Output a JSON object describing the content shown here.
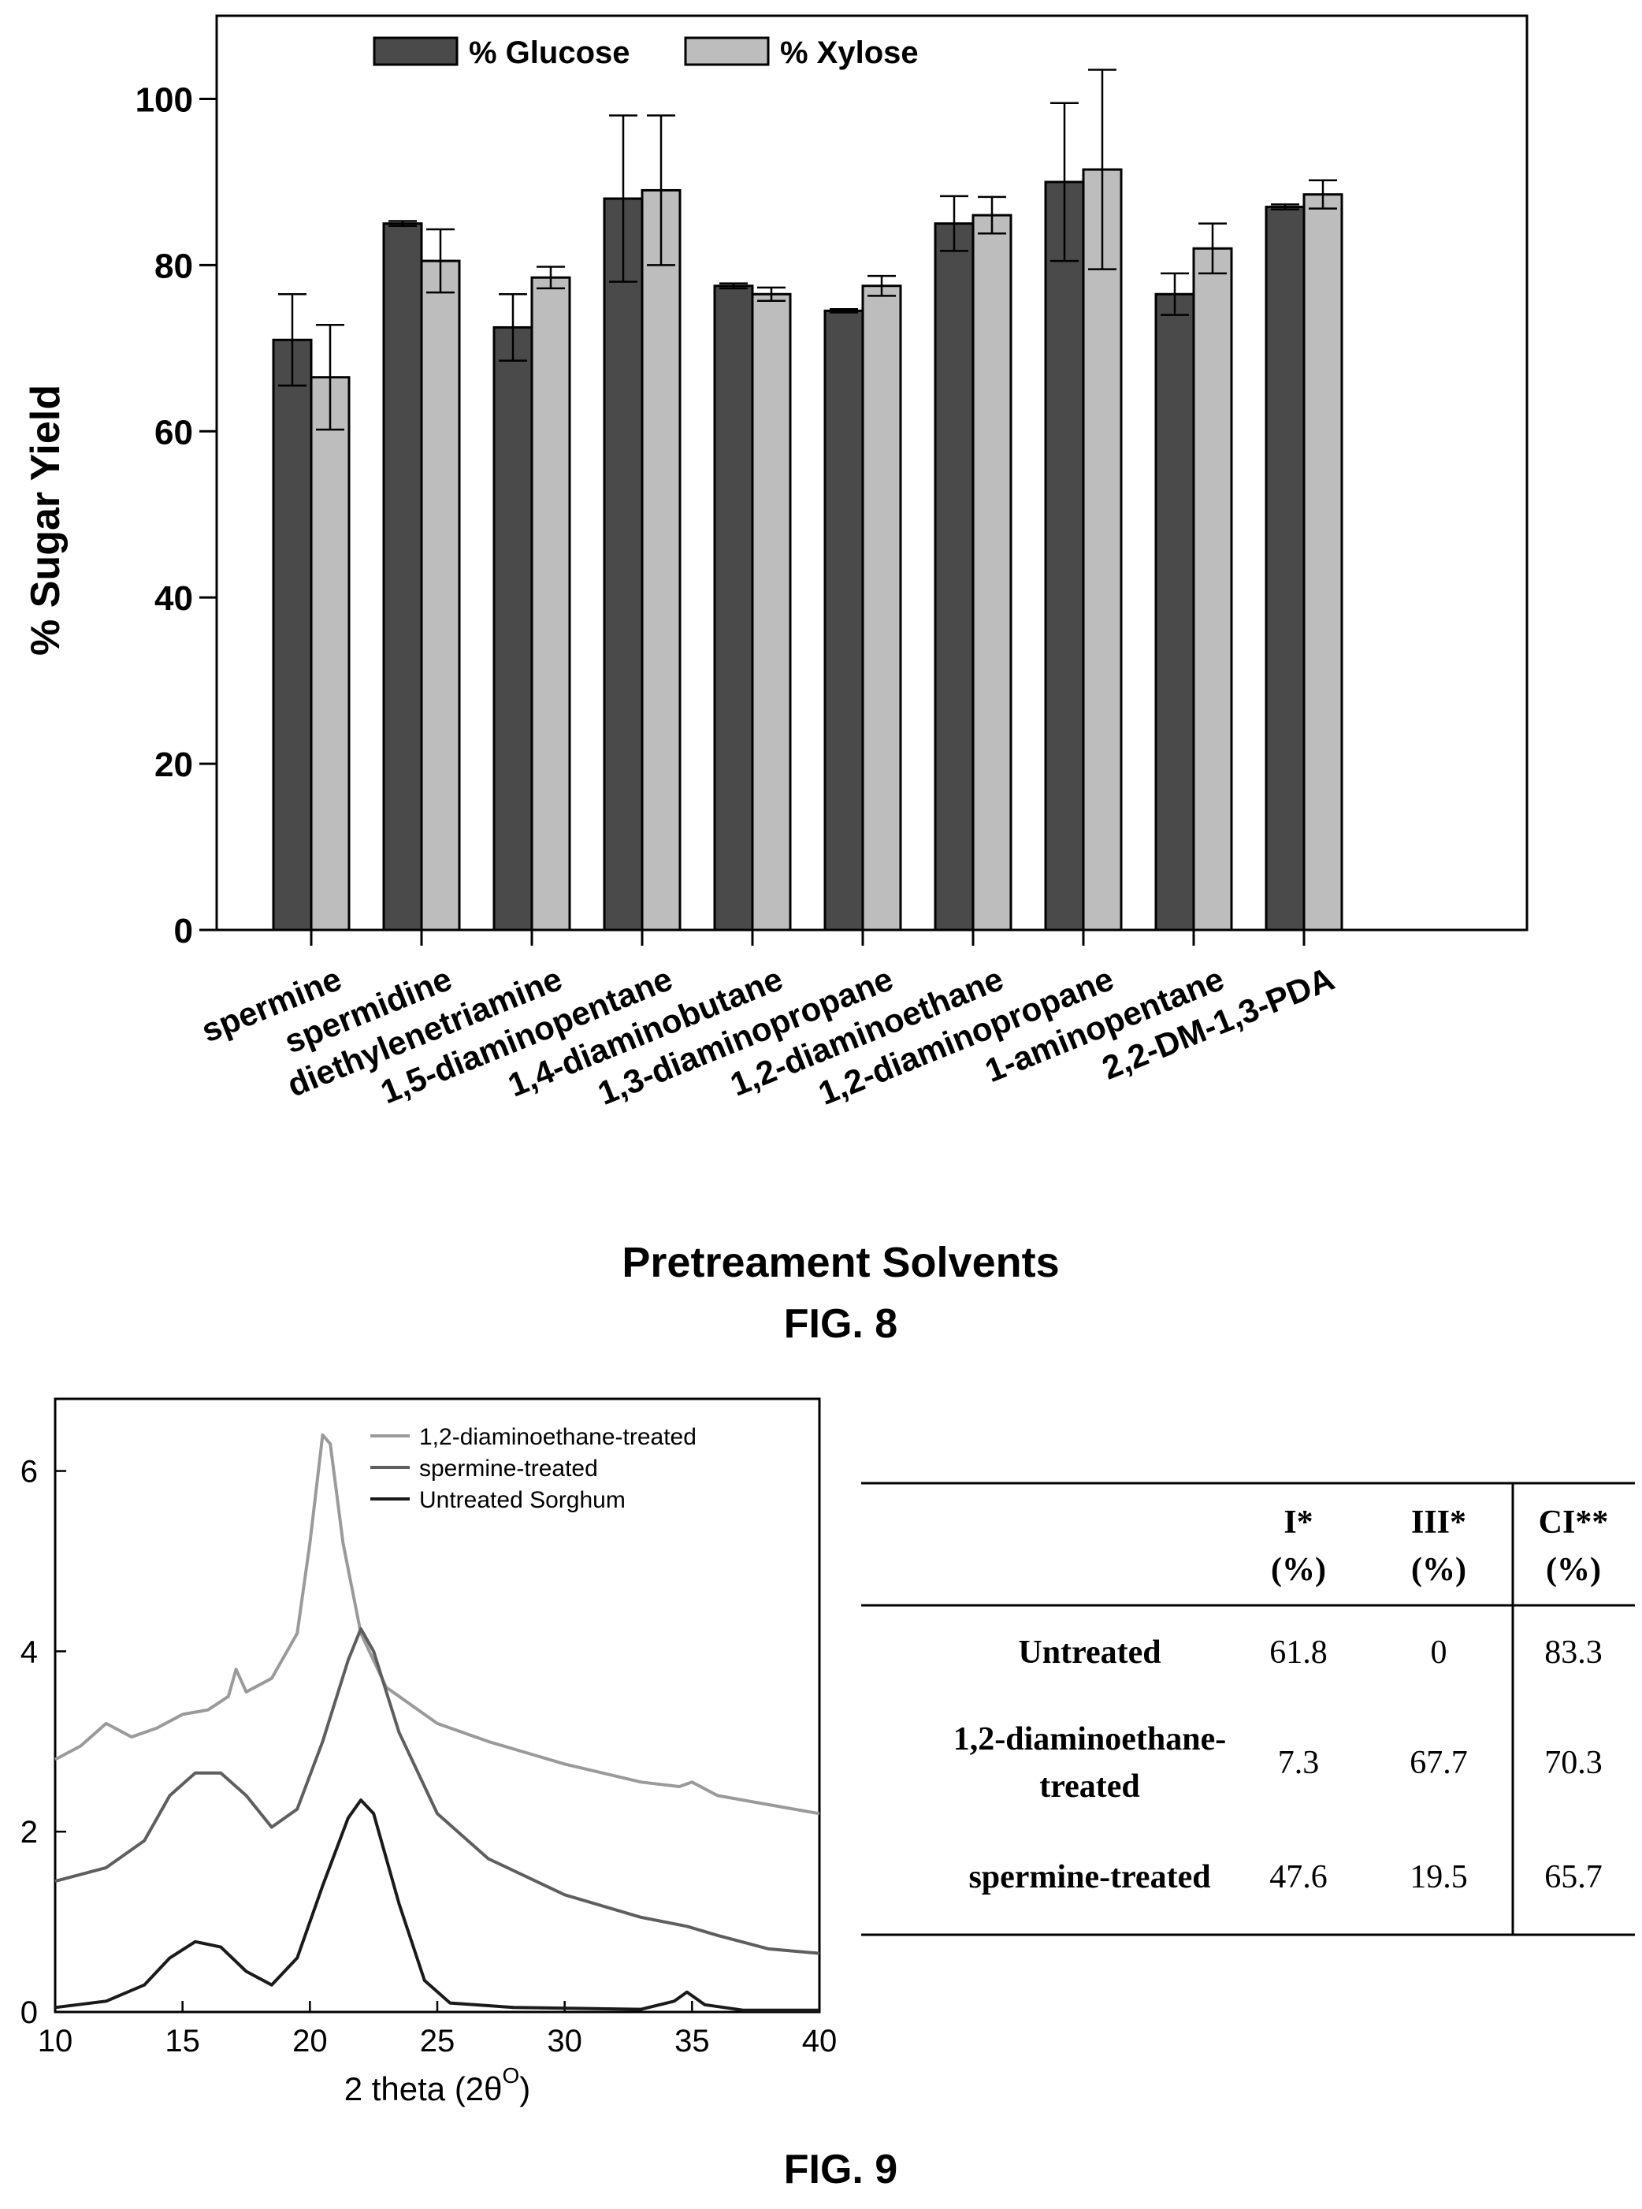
{
  "fig8": {
    "caption": "FIG. 8",
    "chart_data": {
      "type": "bar",
      "categories": [
        "spermine",
        "spermidine",
        "diethylenetriamine",
        "1,5-diaminopentane",
        "1,4-diaminobutane",
        "1,3-diaminopropane",
        "1,2-diaminoethane",
        "1,2-diaminopropane",
        "1-aminopentane",
        "2,2-DM-1,3-PDA"
      ],
      "series": [
        {
          "name": "% Glucose",
          "values": [
            71,
            85,
            72.5,
            88,
            77.5,
            74.5,
            85,
            90,
            76.5,
            87
          ],
          "errors": [
            5.5,
            0.3,
            4,
            10,
            0.3,
            0.2,
            3.3,
            9.5,
            2.5,
            0.3
          ],
          "color": "#4a4a4a"
        },
        {
          "name": "% Xylose",
          "values": [
            66.5,
            80.5,
            78.5,
            89,
            76.5,
            77.5,
            86,
            91.5,
            82,
            88.5
          ],
          "errors": [
            6.3,
            3.8,
            1.3,
            9,
            0.8,
            1.2,
            2.2,
            12,
            3,
            1.7
          ],
          "color": "#bdbdbd"
        }
      ],
      "xlabel": "Pretreament Solvents",
      "ylabel": "% Sugar Yield",
      "ylim": [
        0,
        110
      ],
      "yticks": [
        0,
        20,
        40,
        60,
        80,
        100
      ],
      "legend": "top-left",
      "grid": false
    }
  },
  "fig9": {
    "caption": "FIG. 9",
    "chart_data": {
      "type": "line",
      "xlabel_main": "2 theta (2θ",
      "xlabel_sup": "O",
      "xlabel_end": ")",
      "ylabel": "",
      "xlim": [
        10,
        40
      ],
      "ylim": [
        0,
        6.8
      ],
      "xticks": [
        10,
        15,
        20,
        25,
        30,
        35,
        40
      ],
      "yticks": [
        0,
        2,
        4,
        6
      ],
      "legend": "top-right",
      "series": [
        {
          "name": "1,2-diaminoethane-treated",
          "color": "#9a9a9a",
          "points": [
            [
              10,
              2.8
            ],
            [
              11,
              2.95
            ],
            [
              12,
              3.2
            ],
            [
              13,
              3.05
            ],
            [
              14,
              3.15
            ],
            [
              15,
              3.3
            ],
            [
              16,
              3.35
            ],
            [
              16.8,
              3.5
            ],
            [
              17.1,
              3.8
            ],
            [
              17.5,
              3.55
            ],
            [
              18.5,
              3.7
            ],
            [
              19.5,
              4.2
            ],
            [
              20,
              5.2
            ],
            [
              20.5,
              6.4
            ],
            [
              20.8,
              6.3
            ],
            [
              21.3,
              5.2
            ],
            [
              22,
              4.2
            ],
            [
              23,
              3.6
            ],
            [
              25,
              3.2
            ],
            [
              27,
              3.0
            ],
            [
              30,
              2.75
            ],
            [
              33,
              2.55
            ],
            [
              34.5,
              2.5
            ],
            [
              35,
              2.55
            ],
            [
              36,
              2.4
            ],
            [
              38,
              2.3
            ],
            [
              40,
              2.2
            ]
          ]
        },
        {
          "name": "spermine-treated",
          "color": "#5e5e5e",
          "points": [
            [
              10,
              1.45
            ],
            [
              12,
              1.6
            ],
            [
              13.5,
              1.9
            ],
            [
              14.5,
              2.4
            ],
            [
              15.5,
              2.65
            ],
            [
              16.5,
              2.65
            ],
            [
              17.5,
              2.4
            ],
            [
              18.5,
              2.05
            ],
            [
              19.5,
              2.25
            ],
            [
              20.5,
              3.0
            ],
            [
              21.5,
              3.9
            ],
            [
              22,
              4.25
            ],
            [
              22.5,
              4.0
            ],
            [
              23.5,
              3.1
            ],
            [
              25,
              2.2
            ],
            [
              27,
              1.7
            ],
            [
              30,
              1.3
            ],
            [
              33,
              1.05
            ],
            [
              34.8,
              0.95
            ],
            [
              36,
              0.85
            ],
            [
              38,
              0.7
            ],
            [
              40,
              0.65
            ]
          ]
        },
        {
          "name": "Untreated Sorghum",
          "color": "#1a1a1a",
          "points": [
            [
              10,
              0.05
            ],
            [
              12,
              0.12
            ],
            [
              13.5,
              0.3
            ],
            [
              14.5,
              0.6
            ],
            [
              15.5,
              0.78
            ],
            [
              16.5,
              0.72
            ],
            [
              17.5,
              0.45
            ],
            [
              18.5,
              0.3
            ],
            [
              19.5,
              0.6
            ],
            [
              20.5,
              1.4
            ],
            [
              21.5,
              2.15
            ],
            [
              22,
              2.35
            ],
            [
              22.5,
              2.2
            ],
            [
              23.5,
              1.2
            ],
            [
              24.5,
              0.35
            ],
            [
              25.5,
              0.1
            ],
            [
              28,
              0.05
            ],
            [
              33,
              0.03
            ],
            [
              34.3,
              0.12
            ],
            [
              34.8,
              0.22
            ],
            [
              35.5,
              0.08
            ],
            [
              37,
              0.02
            ],
            [
              40,
              0.02
            ]
          ]
        }
      ]
    }
  },
  "table": {
    "headers": [
      {
        "line1": "I*",
        "line2": "(%)"
      },
      {
        "line1": "III*",
        "line2": "(%)"
      },
      {
        "line1": "CI**",
        "line2": "(%)"
      }
    ],
    "rows": [
      {
        "label1": "Untreated",
        "label2": "",
        "values": [
          "61.8",
          "0",
          "83.3"
        ]
      },
      {
        "label1": "1,2-diaminoethane-",
        "label2": "treated",
        "values": [
          "7.3",
          "67.7",
          "70.3"
        ]
      },
      {
        "label1": "spermine-treated",
        "label2": "",
        "values": [
          "47.6",
          "19.5",
          "65.7"
        ]
      }
    ]
  }
}
